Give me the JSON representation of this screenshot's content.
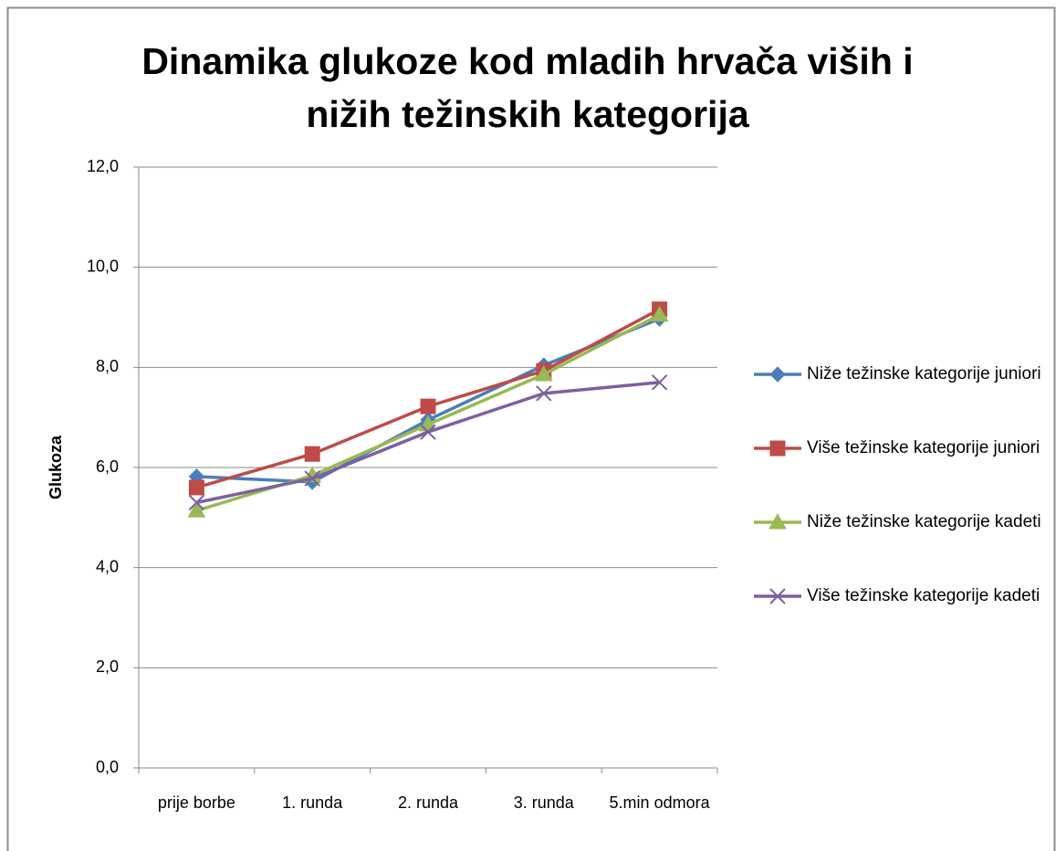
{
  "chart_data": {
    "type": "line",
    "title": "Dinamika glukoze kod mladih hrvača viših i nižih težinskih kategorija",
    "y_label": "Glukoza",
    "categories": [
      "prije borbe",
      "1. runda",
      "2. runda",
      "3. runda",
      "5.min odmora"
    ],
    "series": [
      {
        "name": "Niže težinske kategorije juniori",
        "color": "#4a7ebb",
        "values": [
          5.82,
          5.71,
          6.95,
          8.04,
          8.97
        ]
      },
      {
        "name": "Više težinske kategorije juniori",
        "color": "#be4b48",
        "values": [
          5.6,
          6.27,
          7.22,
          7.93,
          9.16
        ]
      },
      {
        "name": "Niže težinske kategorije kadeti",
        "color": "#98b954",
        "values": [
          5.14,
          5.84,
          6.86,
          7.86,
          9.05
        ]
      },
      {
        "name": "Više težinske kategorije kadeti",
        "color": "#7d60a0",
        "values": [
          5.3,
          5.78,
          6.71,
          7.48,
          7.7
        ]
      }
    ],
    "ylim": [
      0,
      12
    ],
    "yticks": [
      {
        "value": 0,
        "label": "0,0"
      },
      {
        "value": 2,
        "label": "2,0"
      },
      {
        "value": 4,
        "label": "4,0"
      },
      {
        "value": 6,
        "label": "6,0"
      },
      {
        "value": 8,
        "label": "8,0"
      },
      {
        "value": 10,
        "label": "10,0"
      },
      {
        "value": 12,
        "label": "12,0"
      }
    ],
    "grid": true,
    "legend": "right"
  }
}
